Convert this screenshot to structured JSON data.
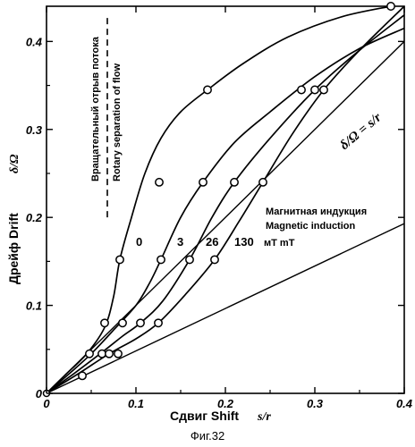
{
  "chart_data": {
    "type": "line",
    "xlabel": "Сдвиг Shift",
    "xlabel_symbol": "s/r",
    "ylabel": "Дрейф Drift",
    "ylabel_symbol": "δ/Ω",
    "xlim": [
      0,
      0.4
    ],
    "ylim": [
      0,
      0.44
    ],
    "x_ticks": [
      0,
      0.1,
      0.2,
      0.3,
      0.4
    ],
    "x_tick_labels": [
      "0",
      "0.1",
      "0.2",
      "0.3",
      "0.4"
    ],
    "y_ticks": [
      0,
      0.1,
      0.2,
      0.3,
      0.4
    ],
    "y_tick_labels": [
      "0",
      "0.1",
      "0.2",
      "0.3",
      "0.4"
    ],
    "grid": false,
    "series": [
      {
        "label": "0",
        "curve": [
          [
            0,
            0
          ],
          [
            0.02,
            0.02
          ],
          [
            0.045,
            0.045
          ],
          [
            0.065,
            0.075
          ],
          [
            0.075,
            0.11
          ],
          [
            0.082,
            0.152
          ],
          [
            0.095,
            0.2
          ],
          [
            0.11,
            0.25
          ],
          [
            0.128,
            0.29
          ],
          [
            0.15,
            0.32
          ],
          [
            0.18,
            0.345
          ],
          [
            0.22,
            0.375
          ],
          [
            0.27,
            0.405
          ],
          [
            0.33,
            0.428
          ],
          [
            0.385,
            0.44
          ]
        ],
        "points": [
          [
            0.04,
            0.02
          ],
          [
            0.065,
            0.08
          ],
          [
            0.082,
            0.152
          ],
          [
            0.126,
            0.24
          ],
          [
            0.18,
            0.345
          ],
          [
            0.385,
            0.44
          ]
        ]
      },
      {
        "label": "3",
        "curve": [
          [
            0,
            0
          ],
          [
            0.025,
            0.022
          ],
          [
            0.05,
            0.045
          ],
          [
            0.075,
            0.072
          ],
          [
            0.1,
            0.1
          ],
          [
            0.115,
            0.125
          ],
          [
            0.128,
            0.152
          ],
          [
            0.15,
            0.2
          ],
          [
            0.175,
            0.24
          ],
          [
            0.21,
            0.285
          ],
          [
            0.25,
            0.32
          ],
          [
            0.3,
            0.36
          ],
          [
            0.35,
            0.392
          ],
          [
            0.4,
            0.415
          ]
        ],
        "points": [
          [
            0.048,
            0.045
          ],
          [
            0.085,
            0.08
          ],
          [
            0.128,
            0.152
          ],
          [
            0.175,
            0.24
          ],
          [
            0.285,
            0.345
          ]
        ]
      },
      {
        "label": "26",
        "curve": [
          [
            0,
            0
          ],
          [
            0.03,
            0.022
          ],
          [
            0.06,
            0.045
          ],
          [
            0.085,
            0.065
          ],
          [
            0.105,
            0.08
          ],
          [
            0.13,
            0.105
          ],
          [
            0.16,
            0.152
          ],
          [
            0.185,
            0.2
          ],
          [
            0.21,
            0.24
          ],
          [
            0.25,
            0.29
          ],
          [
            0.3,
            0.345
          ],
          [
            0.35,
            0.39
          ],
          [
            0.4,
            0.43
          ]
        ],
        "points": [
          [
            0.062,
            0.045
          ],
          [
            0.105,
            0.08
          ],
          [
            0.16,
            0.152
          ],
          [
            0.21,
            0.24
          ],
          [
            0.3,
            0.345
          ]
        ]
      },
      {
        "label": "130",
        "curve": [
          [
            0,
            0
          ],
          [
            0.035,
            0.022
          ],
          [
            0.07,
            0.045
          ],
          [
            0.1,
            0.062
          ],
          [
            0.125,
            0.08
          ],
          [
            0.155,
            0.112
          ],
          [
            0.188,
            0.152
          ],
          [
            0.215,
            0.195
          ],
          [
            0.242,
            0.24
          ],
          [
            0.275,
            0.295
          ],
          [
            0.31,
            0.345
          ],
          [
            0.35,
            0.39
          ],
          [
            0.4,
            0.44
          ]
        ],
        "points": [
          [
            0.07,
            0.045
          ],
          [
            0.08,
            0.045
          ],
          [
            0.125,
            0.08
          ],
          [
            0.188,
            0.152
          ],
          [
            0.242,
            0.24
          ],
          [
            0.31,
            0.345
          ]
        ]
      }
    ],
    "reference_lines": [
      {
        "label": "δ/Ω = s/r",
        "from": [
          0,
          0
        ],
        "to": [
          0.4,
          0.4
        ]
      },
      {
        "label": "",
        "from": [
          0,
          0
        ],
        "to": [
          0.4,
          0.193
        ]
      }
    ],
    "separation_line": {
      "x": 0.068,
      "y_from": 0.2,
      "y_to": 0.43,
      "style": "dashed"
    },
    "annotations": {
      "rotary_separation_ru": "Вращательный отрыв потока",
      "rotary_separation_en": "Rotary separation of flow",
      "magnetic_induction_ru": "Магнитная индукция",
      "magnetic_induction_en": "Magnetic induction",
      "unit_label": "мТ mT",
      "identity_line_label": "δ/Ω = s/r"
    },
    "curve_labels": [
      "0",
      "3",
      "26",
      "130"
    ],
    "caption": "Фиг.32"
  }
}
